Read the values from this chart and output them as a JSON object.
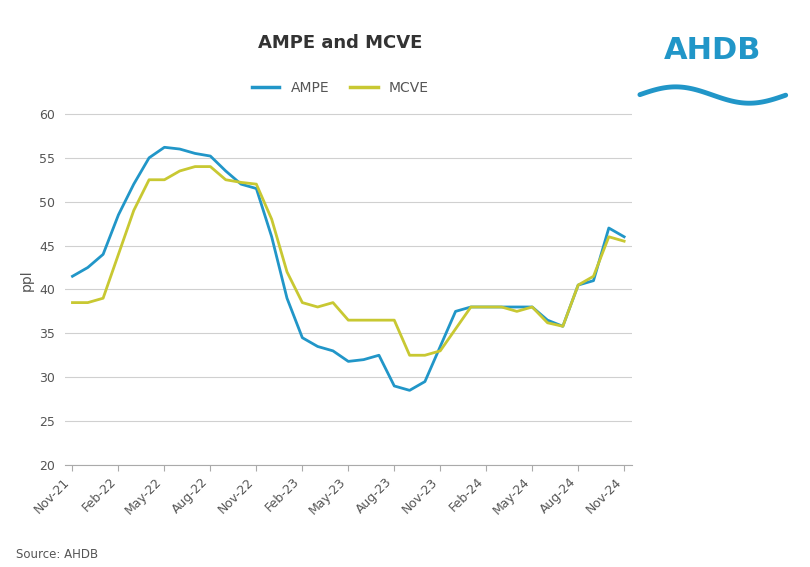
{
  "title": "AMPE and MCVE",
  "ylabel": "ppl",
  "source": "Source: AHDB",
  "ylim": [
    20,
    62
  ],
  "yticks": [
    20,
    25,
    30,
    35,
    40,
    45,
    50,
    55,
    60
  ],
  "x_labels": [
    "Nov-21",
    "Feb-22",
    "May-22",
    "Aug-22",
    "Nov-22",
    "Feb-23",
    "May-23",
    "Aug-23",
    "Nov-23",
    "Feb-24",
    "May-24",
    "Aug-24",
    "Nov-24"
  ],
  "ampe_color": "#2196C8",
  "mcve_color": "#C8C832",
  "background_color": "#ffffff",
  "x_tick_positions": [
    0,
    3,
    6,
    9,
    12,
    15,
    18,
    21,
    24,
    27,
    30,
    33,
    36
  ],
  "ampe_y": [
    41.5,
    42.5,
    44.0,
    48.5,
    52.0,
    55.0,
    56.2,
    56.0,
    55.5,
    55.2,
    53.5,
    52.0,
    51.5,
    46.0,
    39.0,
    34.5,
    33.5,
    33.0,
    31.8,
    32.0,
    32.5,
    29.0,
    28.5,
    29.5,
    33.5,
    37.5,
    38.0,
    38.0,
    38.0,
    38.0,
    38.0,
    36.5,
    35.8,
    40.5,
    41.0,
    47.0,
    46.0
  ],
  "mcve_y": [
    38.5,
    38.5,
    39.0,
    44.0,
    49.0,
    52.5,
    52.5,
    53.5,
    54.0,
    54.0,
    52.5,
    52.2,
    52.0,
    48.0,
    42.0,
    38.5,
    38.0,
    38.5,
    36.5,
    36.5,
    36.5,
    36.5,
    32.5,
    32.5,
    33.0,
    35.5,
    38.0,
    38.0,
    38.0,
    37.5,
    38.0,
    36.2,
    35.8,
    40.5,
    41.5,
    46.0,
    45.5
  ]
}
